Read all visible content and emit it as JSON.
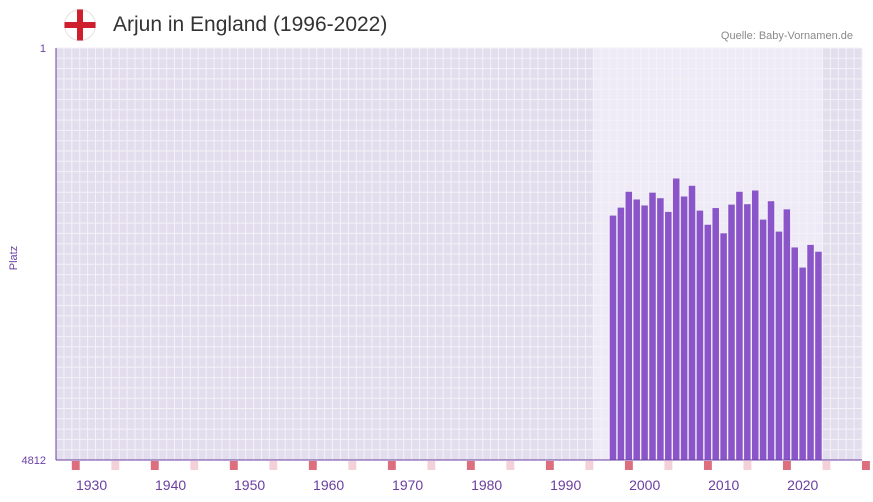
{
  "header": {
    "title": "Arjun in England (1996-2022)",
    "source": "Quelle: Baby-Vornamen.de",
    "flag_icon": "england-flag-icon"
  },
  "colors": {
    "bar": "#8a55c8",
    "axis": "#6b3fa0",
    "plot_bg": "#e3deed",
    "highlight_bg": "#efebf6",
    "grid": "#f4f1f8",
    "marker_strong": "#dc6e7e",
    "marker_light": "#f4d1d8",
    "flag_red": "#cf1f2f"
  },
  "chart_data": {
    "type": "bar",
    "title": "Arjun in England (1996-2022)",
    "xlabel": "",
    "ylabel": "Platz",
    "y_axis_inverted": true,
    "ylim": [
      1,
      4812
    ],
    "ytick_labels": [
      "1",
      "4812"
    ],
    "xlim": [
      1926,
      2028
    ],
    "xtick_labels": [
      "1930",
      "1940",
      "1950",
      "1960",
      "1970",
      "1980",
      "1990",
      "2000",
      "2010",
      "2020"
    ],
    "highlight_range": [
      1996,
      2022
    ],
    "series": [
      {
        "name": "Arjun",
        "x": [
          1996,
          1997,
          1998,
          1999,
          2000,
          2001,
          2002,
          2003,
          2004,
          2005,
          2006,
          2007,
          2008,
          2009,
          2010,
          2011,
          2012,
          2013,
          2014,
          2015,
          2016,
          2017,
          2018,
          2019,
          2020,
          2021,
          2022
        ],
        "values": [
          1958,
          1865,
          1680,
          1770,
          1840,
          1690,
          1755,
          1915,
          1525,
          1735,
          1610,
          1900,
          2065,
          1870,
          2165,
          1830,
          1680,
          1825,
          1665,
          2005,
          1790,
          2145,
          1885,
          2330,
          2565,
          2300,
          2380
        ]
      }
    ]
  }
}
